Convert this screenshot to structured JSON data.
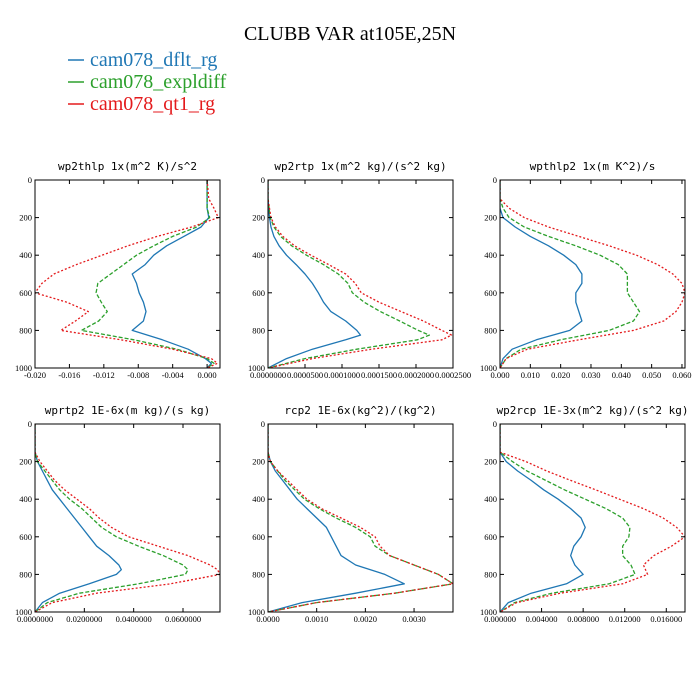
{
  "title": "CLUBB VAR at105E,25N",
  "colors": {
    "dflt": "#1f77b4",
    "expldiff": "#2ca02c",
    "qt1": "#e41a1c"
  },
  "legend": [
    {
      "name": "cam078_dflt_rg",
      "color": "#1f77b4"
    },
    {
      "name": "cam078_expldiff",
      "color": "#2ca02c"
    },
    {
      "name": "cam078_qt1_rg",
      "color": "#e41a1c"
    }
  ],
  "chart_data": [
    {
      "type": "line",
      "title": "wp2thlp  1x(m^2 K)/s^2",
      "xlim": [
        -0.02,
        0.0015
      ],
      "ylim": [
        1000,
        0
      ],
      "xticks": [
        "-0.020",
        "-0.016",
        "-0.012",
        "-0.008",
        "-0.004",
        "0.000"
      ],
      "xtick_values": [
        -0.02,
        -0.016,
        -0.012,
        -0.008,
        -0.004,
        0.0
      ],
      "yticks": [
        "0",
        "200",
        "400",
        "600",
        "800",
        "1000"
      ],
      "ytick_values": [
        0,
        200,
        400,
        600,
        800,
        1000
      ],
      "y": [
        0,
        100,
        150,
        200,
        250,
        300,
        350,
        400,
        450,
        500,
        550,
        600,
        650,
        700,
        750,
        800,
        850,
        900,
        950,
        975,
        1000
      ],
      "series": [
        {
          "name": "cam078_dflt_rg",
          "values": [
            0.0,
            0.0,
            0.0,
            0.0002,
            -0.0007,
            -0.0027,
            -0.0047,
            -0.0062,
            -0.0072,
            -0.0087,
            -0.0082,
            -0.0079,
            -0.0074,
            -0.0071,
            -0.0074,
            -0.0087,
            -0.0052,
            -0.0022,
            -0.0002,
            0.0005,
            0.0
          ]
        },
        {
          "name": "cam078_expldiff",
          "values": [
            0.0,
            0.0,
            0.0,
            0.0003,
            -0.0012,
            -0.004,
            -0.0062,
            -0.0082,
            -0.0097,
            -0.0112,
            -0.0127,
            -0.0129,
            -0.0123,
            -0.0116,
            -0.0126,
            -0.0146,
            -0.0085,
            -0.0035,
            0.0,
            0.0008,
            0.0
          ]
        },
        {
          "name": "cam078_qt1_rg",
          "values": [
            0.0,
            0.0002,
            0.0008,
            0.0013,
            -0.0018,
            -0.0058,
            -0.0092,
            -0.0122,
            -0.0152,
            -0.0178,
            -0.0192,
            -0.02,
            -0.0163,
            -0.0138,
            -0.0153,
            -0.017,
            -0.01,
            -0.004,
            0.0005,
            0.0012,
            0.0
          ]
        }
      ]
    },
    {
      "type": "line",
      "title": "wp2rtp  1x(m^2 kg)/(s^2 kg)",
      "xlim": [
        0.0,
        0.00025
      ],
      "ylim": [
        1000,
        0
      ],
      "xticks": [
        "0.0000000",
        "0.0000500",
        "0.0001000",
        "0.0001500",
        "0.0002000",
        "0.0002500"
      ],
      "xtick_values": [
        0.0,
        5e-05,
        0.0001,
        0.00015,
        0.0002,
        0.00025
      ],
      "yticks": [
        "0",
        "200",
        "400",
        "600",
        "800",
        "1000"
      ],
      "ytick_values": [
        0,
        200,
        400,
        600,
        800,
        1000
      ],
      "y": [
        0,
        100,
        200,
        250,
        300,
        350,
        400,
        450,
        500,
        550,
        600,
        650,
        700,
        750,
        800,
        825,
        850,
        900,
        950,
        1000
      ],
      "series": [
        {
          "name": "cam078_dflt_rg",
          "values": [
            0.0,
            0.0,
            2e-06,
            4e-06,
            8e-06,
            1.5e-05,
            2.5e-05,
            3.8e-05,
            5e-05,
            6e-05,
            6.8e-05,
            7.5e-05,
            8.5e-05,
            0.000105,
            0.00012,
            0.000125,
            0.000105,
            6e-05,
            2.5e-05,
            0.0
          ]
        },
        {
          "name": "cam078_expldiff",
          "values": [
            0.0,
            0.0,
            3e-06,
            8e-06,
            1.7e-05,
            3.2e-05,
            5.2e-05,
            7.5e-05,
            9.5e-05,
            0.000108,
            0.000114,
            0.00013,
            0.000152,
            0.000178,
            0.000203,
            0.000218,
            0.000202,
            0.00012,
            5e-05,
            0.0
          ]
        },
        {
          "name": "cam078_qt1_rg",
          "values": [
            0.0,
            0.0,
            4e-06,
            1e-05,
            2e-05,
            3.6e-05,
            5.8e-05,
            8.2e-05,
            0.000105,
            0.000118,
            0.000126,
            0.00015,
            0.00018,
            0.00021,
            0.000235,
            0.000248,
            0.000235,
            0.00014,
            6e-05,
            0.0
          ]
        }
      ]
    },
    {
      "type": "line",
      "title": "wpthlp2  1x(m K^2)/s",
      "xlim": [
        0.0,
        0.061
      ],
      "ylim": [
        1000,
        0
      ],
      "xticks": [
        "0.000",
        "0.010",
        "0.020",
        "0.030",
        "0.040",
        "0.050",
        "0.060"
      ],
      "xtick_values": [
        0.0,
        0.01,
        0.02,
        0.03,
        0.04,
        0.05,
        0.06
      ],
      "yticks": [
        "0",
        "200",
        "400",
        "600",
        "800",
        "1000"
      ],
      "ytick_values": [
        0,
        200,
        400,
        600,
        800,
        1000
      ],
      "y": [
        0,
        100,
        150,
        200,
        250,
        300,
        350,
        400,
        450,
        500,
        550,
        600,
        650,
        700,
        750,
        800,
        850,
        900,
        950,
        1000
      ],
      "series": [
        {
          "name": "cam078_dflt_rg",
          "values": [
            0.0,
            0.0,
            0.0,
            0.001,
            0.005,
            0.01,
            0.016,
            0.021,
            0.025,
            0.027,
            0.027,
            0.025,
            0.025,
            0.026,
            0.027,
            0.023,
            0.012,
            0.004,
            0.001,
            0.0
          ]
        },
        {
          "name": "cam078_expldiff",
          "values": [
            0.0,
            0.0,
            0.001,
            0.003,
            0.008,
            0.016,
            0.025,
            0.033,
            0.039,
            0.042,
            0.042,
            0.042,
            0.044,
            0.046,
            0.044,
            0.036,
            0.02,
            0.007,
            0.002,
            0.0
          ]
        },
        {
          "name": "cam078_qt1_rg",
          "values": [
            0.0,
            0.0,
            0.003,
            0.008,
            0.016,
            0.026,
            0.036,
            0.045,
            0.052,
            0.057,
            0.06,
            0.061,
            0.06,
            0.058,
            0.054,
            0.044,
            0.026,
            0.009,
            0.002,
            0.0
          ]
        }
      ]
    },
    {
      "type": "line",
      "title": "wprtp2  1E-6x(m kg)/(s kg)",
      "xlim": [
        0.0,
        0.075
      ],
      "ylim": [
        1000,
        0
      ],
      "xticks": [
        "0.0000000",
        "0.0200000",
        "0.0400000",
        "0.0600000"
      ],
      "xtick_values": [
        0.0,
        0.02,
        0.04,
        0.06
      ],
      "yticks": [
        "0",
        "200",
        "400",
        "600",
        "800",
        "1000"
      ],
      "ytick_values": [
        0,
        200,
        400,
        600,
        800,
        1000
      ],
      "y": [
        0,
        150,
        200,
        250,
        300,
        350,
        400,
        450,
        500,
        550,
        600,
        650,
        700,
        750,
        775,
        800,
        850,
        900,
        950,
        1000
      ],
      "series": [
        {
          "name": "cam078_dflt_rg",
          "values": [
            0.0,
            0.0,
            0.001,
            0.003,
            0.005,
            0.007,
            0.01,
            0.013,
            0.016,
            0.019,
            0.022,
            0.025,
            0.03,
            0.034,
            0.035,
            0.033,
            0.022,
            0.01,
            0.003,
            0.0
          ]
        },
        {
          "name": "cam078_expldiff",
          "values": [
            0.0,
            0.0,
            0.001,
            0.004,
            0.007,
            0.01,
            0.014,
            0.019,
            0.023,
            0.027,
            0.033,
            0.042,
            0.052,
            0.06,
            0.062,
            0.061,
            0.042,
            0.018,
            0.005,
            0.0
          ]
        },
        {
          "name": "cam078_qt1_rg",
          "values": [
            0.0,
            0.0,
            0.002,
            0.005,
            0.008,
            0.012,
            0.017,
            0.022,
            0.026,
            0.031,
            0.038,
            0.05,
            0.062,
            0.071,
            0.074,
            0.075,
            0.055,
            0.025,
            0.007,
            0.0
          ]
        }
      ]
    },
    {
      "type": "line",
      "title": "rcp2  1E-6x(kg^2)/(kg^2)",
      "xlim": [
        0.0,
        0.0038
      ],
      "ylim": [
        1000,
        0
      ],
      "xticks": [
        "0.0000",
        "0.0010",
        "0.0020",
        "0.0030"
      ],
      "xtick_values": [
        0.0,
        0.001,
        0.002,
        0.003
      ],
      "yticks": [
        "0",
        "200",
        "400",
        "600",
        "800",
        "1000"
      ],
      "ytick_values": [
        0,
        200,
        400,
        600,
        800,
        1000
      ],
      "y": [
        0,
        150,
        200,
        250,
        300,
        350,
        400,
        450,
        500,
        550,
        600,
        650,
        700,
        750,
        800,
        850,
        900,
        950,
        1000
      ],
      "series": [
        {
          "name": "cam078_dflt_rg",
          "values": [
            0.0,
            0.0,
            5e-05,
            0.00015,
            0.0003,
            0.00045,
            0.0006,
            0.0008,
            0.001,
            0.0012,
            0.0013,
            0.0014,
            0.0015,
            0.0018,
            0.0024,
            0.0028,
            0.0018,
            0.0007,
            0.0
          ]
        },
        {
          "name": "cam078_expldiff",
          "values": [
            0.0,
            0.0,
            5e-05,
            0.0002,
            0.00035,
            0.00055,
            0.00075,
            0.00105,
            0.0014,
            0.0018,
            0.0021,
            0.0022,
            0.0025,
            0.003,
            0.0035,
            0.0038,
            0.0026,
            0.001,
            0.0
          ]
        },
        {
          "name": "cam078_qt1_rg",
          "values": [
            0.0,
            0.0,
            5e-05,
            0.0002,
            0.0004,
            0.0006,
            0.0008,
            0.0011,
            0.0015,
            0.0019,
            0.0022,
            0.0023,
            0.0025,
            0.003,
            0.0035,
            0.0038,
            0.0026,
            0.001,
            0.0
          ]
        }
      ]
    },
    {
      "type": "line",
      "title": "wp2rcp  1E-3x(m^2 kg)/(s^2 kg)",
      "xlim": [
        0.0,
        0.0178
      ],
      "ylim": [
        1000,
        0
      ],
      "xticks": [
        "0.000000",
        "0.004000",
        "0.008000",
        "0.012000",
        "0.016000"
      ],
      "xtick_values": [
        0.0,
        0.004,
        0.008,
        0.012,
        0.016
      ],
      "yticks": [
        "0",
        "200",
        "400",
        "600",
        "800",
        "1000"
      ],
      "ytick_values": [
        0,
        200,
        400,
        600,
        800,
        1000
      ],
      "y": [
        0,
        150,
        200,
        250,
        300,
        350,
        400,
        450,
        500,
        550,
        600,
        650,
        700,
        750,
        800,
        850,
        900,
        950,
        1000
      ],
      "series": [
        {
          "name": "cam078_dflt_rg",
          "values": [
            0.0,
            0.0,
            0.0006,
            0.0017,
            0.003,
            0.0042,
            0.0056,
            0.0068,
            0.0078,
            0.0082,
            0.0078,
            0.0071,
            0.0068,
            0.0072,
            0.008,
            0.0064,
            0.003,
            0.0008,
            0.0
          ]
        },
        {
          "name": "cam078_expldiff",
          "values": [
            0.0,
            0.0,
            0.0012,
            0.0026,
            0.0044,
            0.0062,
            0.0082,
            0.0102,
            0.0118,
            0.0125,
            0.0124,
            0.0118,
            0.0118,
            0.0126,
            0.013,
            0.0105,
            0.005,
            0.0014,
            0.0
          ]
        },
        {
          "name": "cam078_qt1_rg",
          "values": [
            0.0,
            0.0,
            0.0025,
            0.0045,
            0.0068,
            0.0092,
            0.0115,
            0.0138,
            0.0157,
            0.017,
            0.0178,
            0.0165,
            0.0148,
            0.0138,
            0.0142,
            0.0118,
            0.0058,
            0.0016,
            0.0
          ]
        }
      ]
    }
  ]
}
